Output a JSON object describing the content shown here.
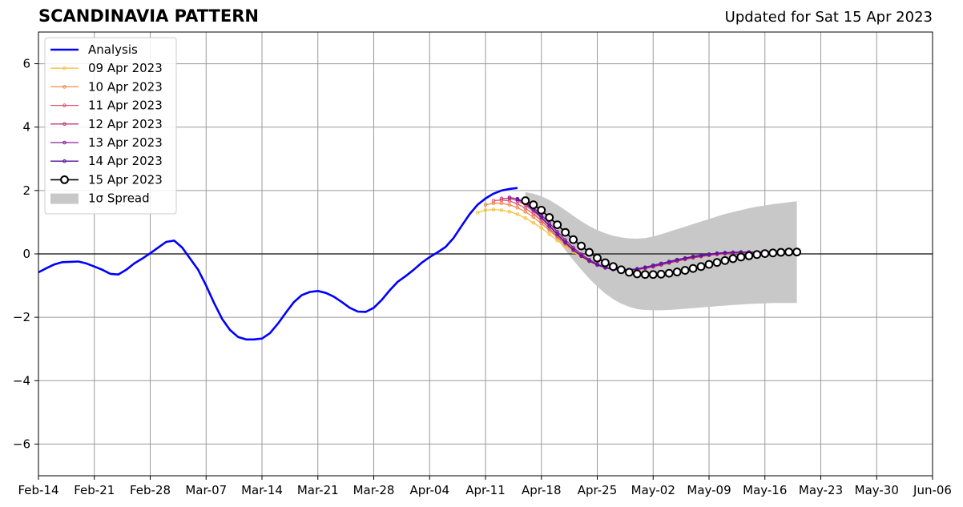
{
  "chart_data": {
    "type": "line",
    "title": "SCANDINAVIA PATTERN",
    "subtitle": "Updated for Sat 15 Apr 2023",
    "xlabel": "",
    "ylabel": "",
    "x_ticks": [
      "Feb-14",
      "Feb-21",
      "Feb-28",
      "Mar-07",
      "Mar-14",
      "Mar-21",
      "Mar-28",
      "Apr-04",
      "Apr-11",
      "Apr-18",
      "Apr-25",
      "May-02",
      "May-09",
      "May-16",
      "May-23",
      "May-30",
      "Jun-06"
    ],
    "y_ticks": [
      6,
      4,
      2,
      0,
      -2,
      -4,
      -6
    ],
    "y_tick_labels": [
      "6",
      "4",
      "2",
      "0",
      "−2",
      "−4",
      "−6"
    ],
    "xlim": [
      "2023-02-14",
      "2023-06-06"
    ],
    "ylim": [
      -7,
      7
    ],
    "grid": true,
    "zero_line": true,
    "legend_position": "top-left",
    "analysis": {
      "name": "Analysis",
      "color": "#0000ff",
      "x_start": "2023-02-14",
      "values": [
        -0.58,
        -0.45,
        -0.33,
        -0.26,
        -0.25,
        -0.24,
        -0.3,
        -0.4,
        -0.5,
        -0.63,
        -0.65,
        -0.5,
        -0.3,
        -0.15,
        0.02,
        0.2,
        0.38,
        0.42,
        0.2,
        -0.15,
        -0.5,
        -1.0,
        -1.55,
        -2.05,
        -2.4,
        -2.62,
        -2.7,
        -2.7,
        -2.67,
        -2.5,
        -2.2,
        -1.85,
        -1.52,
        -1.3,
        -1.2,
        -1.17,
        -1.23,
        -1.35,
        -1.52,
        -1.7,
        -1.82,
        -1.83,
        -1.7,
        -1.45,
        -1.15,
        -0.88,
        -0.7,
        -0.5,
        -0.28,
        -0.1,
        0.05,
        0.22,
        0.5,
        0.88,
        1.25,
        1.55,
        1.75,
        1.9,
        2.0,
        2.05,
        2.08
      ]
    },
    "forecasts": [
      {
        "name": "09 Apr 2023",
        "color": "#f5c242",
        "x_start": "2023-04-10",
        "values": [
          1.3,
          1.38,
          1.4,
          1.38,
          1.33,
          1.25,
          1.13,
          0.98,
          0.82,
          0.62,
          0.42,
          0.24,
          0.06,
          -0.1,
          -0.24,
          -0.35,
          -0.43,
          -0.48,
          -0.5,
          -0.5,
          -0.48,
          -0.45,
          -0.4,
          -0.34,
          -0.28,
          -0.22,
          -0.17,
          -0.12,
          -0.08,
          -0.05,
          -0.02,
          0.0,
          0.02,
          0.03,
          0.04,
          0.05,
          0.05
        ]
      },
      {
        "name": "10 Apr 2023",
        "color": "#f08a4b",
        "x_start": "2023-04-11",
        "values": [
          1.55,
          1.6,
          1.6,
          1.55,
          1.46,
          1.33,
          1.16,
          0.96,
          0.74,
          0.52,
          0.3,
          0.1,
          -0.07,
          -0.22,
          -0.34,
          -0.43,
          -0.49,
          -0.52,
          -0.52,
          -0.5,
          -0.46,
          -0.41,
          -0.35,
          -0.29,
          -0.23,
          -0.18,
          -0.13,
          -0.09,
          -0.05,
          -0.02,
          0.0,
          0.02,
          0.03,
          0.04,
          0.05,
          0.05
        ]
      },
      {
        "name": "11 Apr 2023",
        "color": "#e0566f",
        "x_start": "2023-04-12",
        "values": [
          1.68,
          1.7,
          1.67,
          1.58,
          1.44,
          1.26,
          1.04,
          0.8,
          0.56,
          0.33,
          0.12,
          -0.06,
          -0.21,
          -0.33,
          -0.42,
          -0.48,
          -0.51,
          -0.51,
          -0.49,
          -0.45,
          -0.4,
          -0.34,
          -0.28,
          -0.22,
          -0.17,
          -0.12,
          -0.08,
          -0.04,
          -0.01,
          0.01,
          0.03,
          0.04,
          0.05,
          0.05,
          0.06
        ]
      },
      {
        "name": "12 Apr 2023",
        "color": "#c03a83",
        "x_start": "2023-04-13",
        "values": [
          1.75,
          1.75,
          1.68,
          1.55,
          1.36,
          1.13,
          0.88,
          0.62,
          0.37,
          0.14,
          -0.05,
          -0.2,
          -0.33,
          -0.42,
          -0.47,
          -0.5,
          -0.5,
          -0.48,
          -0.44,
          -0.39,
          -0.33,
          -0.27,
          -0.21,
          -0.16,
          -0.11,
          -0.07,
          -0.04,
          -0.01,
          0.01,
          0.03,
          0.04,
          0.05,
          0.06,
          0.06
        ]
      },
      {
        "name": "13 Apr 2023",
        "color": "#8e1f9b",
        "x_start": "2023-04-14",
        "values": [
          1.78,
          1.74,
          1.63,
          1.46,
          1.23,
          0.97,
          0.7,
          0.44,
          0.2,
          -0.01,
          -0.18,
          -0.32,
          -0.42,
          -0.48,
          -0.51,
          -0.51,
          -0.49,
          -0.45,
          -0.4,
          -0.34,
          -0.28,
          -0.22,
          -0.16,
          -0.11,
          -0.07,
          -0.03,
          0.0,
          0.02,
          0.04,
          0.05,
          0.06,
          0.06,
          0.06
        ]
      },
      {
        "name": "14 Apr 2023",
        "color": "#5a0f9c",
        "x_start": "2023-04-15",
        "values": [
          1.72,
          1.6,
          1.4,
          1.16,
          0.89,
          0.62,
          0.36,
          0.13,
          -0.07,
          -0.23,
          -0.35,
          -0.44,
          -0.49,
          -0.51,
          -0.5,
          -0.47,
          -0.42,
          -0.36,
          -0.3,
          -0.24,
          -0.18,
          -0.13,
          -0.08,
          -0.04,
          -0.01,
          0.02,
          0.04,
          0.05,
          0.06,
          0.06,
          0.06,
          0.06
        ]
      }
    ],
    "current_forecast": {
      "name": "15 Apr 2023",
      "color": "#000000",
      "x_start": "2023-04-16",
      "values": [
        1.68,
        1.55,
        1.38,
        1.15,
        0.92,
        0.68,
        0.45,
        0.25,
        0.05,
        -0.13,
        -0.28,
        -0.4,
        -0.5,
        -0.58,
        -0.63,
        -0.65,
        -0.65,
        -0.64,
        -0.61,
        -0.57,
        -0.52,
        -0.46,
        -0.4,
        -0.33,
        -0.27,
        -0.21,
        -0.15,
        -0.1,
        -0.06,
        -0.02,
        0.01,
        0.03,
        0.05,
        0.06,
        0.06
      ]
    },
    "spread": {
      "name": "1σ Spread",
      "color": "#c8c8c8",
      "x_start": "2023-04-16",
      "upper": [
        1.95,
        1.9,
        1.82,
        1.7,
        1.55,
        1.38,
        1.2,
        1.03,
        0.88,
        0.75,
        0.65,
        0.57,
        0.52,
        0.49,
        0.48,
        0.5,
        0.55,
        0.62,
        0.7,
        0.78,
        0.86,
        0.94,
        1.02,
        1.1,
        1.18,
        1.26,
        1.32,
        1.38,
        1.44,
        1.49,
        1.53,
        1.57,
        1.6,
        1.63,
        1.66
      ],
      "lower": [
        1.5,
        1.3,
        1.05,
        0.75,
        0.45,
        0.12,
        -0.2,
        -0.5,
        -0.78,
        -1.03,
        -1.25,
        -1.43,
        -1.57,
        -1.67,
        -1.74,
        -1.77,
        -1.78,
        -1.78,
        -1.77,
        -1.75,
        -1.73,
        -1.71,
        -1.69,
        -1.67,
        -1.65,
        -1.63,
        -1.61,
        -1.6,
        -1.58,
        -1.57,
        -1.56,
        -1.55,
        -1.55,
        -1.55,
        -1.55
      ]
    }
  }
}
